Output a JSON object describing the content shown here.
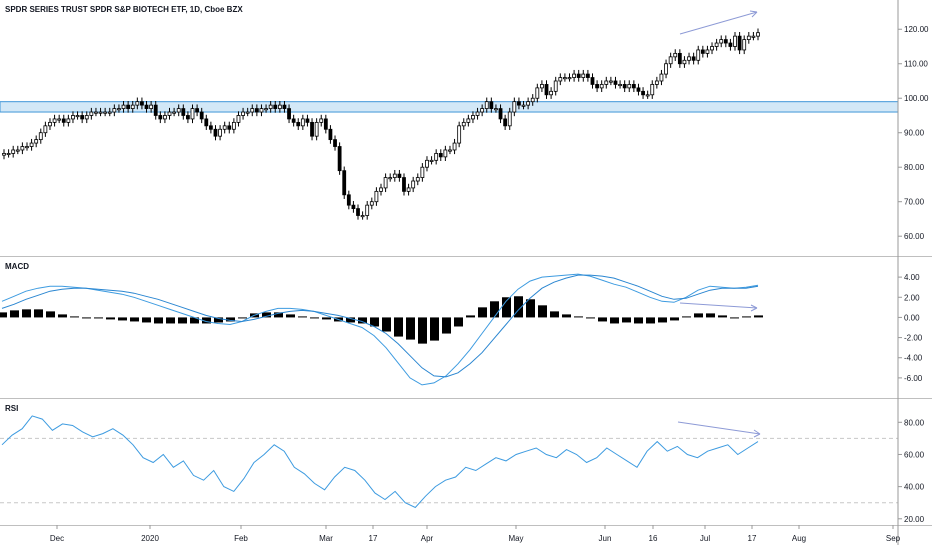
{
  "title": "SPDR SERIES TRUST SPDR S&P BIOTECH ETF, 1D, Cboe BZX",
  "colors": {
    "candle": "#000000",
    "zone_fill": "#cfe6f7",
    "zone_stroke": "#2b8bd4",
    "indicator_line": "#3d9be0",
    "macd_line_2": "#2a86d1",
    "annotation": "#8d9ad6",
    "grid_dashed": "#c7c7c7",
    "separator": "#bfbfbf"
  },
  "panels": {
    "macd_label": "MACD",
    "rsi_label": "RSI"
  },
  "chart_data": [
    {
      "type": "candlestick",
      "panel": "price",
      "y_ticks": [
        "120.00",
        "110.00",
        "100.00",
        "90.00",
        "80.00",
        "70.00",
        "60.00"
      ],
      "ylim": [
        56,
        125
      ],
      "resistance_zone": [
        96,
        99
      ],
      "close": [
        84,
        84,
        85,
        85,
        86,
        86,
        87,
        88,
        90,
        92,
        93,
        94,
        94,
        93,
        94,
        95,
        95,
        94,
        95,
        96,
        96,
        96,
        96,
        96,
        97,
        97,
        98,
        97,
        98,
        99,
        98,
        97,
        98,
        95,
        94,
        95,
        96,
        96,
        97,
        95,
        94,
        97,
        96,
        94,
        92,
        91,
        89,
        91,
        92,
        91,
        93,
        95,
        96,
        96,
        97,
        96,
        97,
        97,
        98,
        97,
        98,
        97,
        94,
        93,
        92,
        94,
        93,
        89,
        93,
        94,
        91,
        88,
        86,
        79,
        72,
        69,
        68,
        66,
        66,
        69,
        70,
        73,
        74,
        77,
        77,
        78,
        77,
        73,
        74,
        76,
        77,
        80,
        82,
        82,
        84,
        83,
        85,
        85,
        87,
        92,
        93,
        94,
        95,
        96,
        97,
        99,
        97,
        97,
        94,
        92,
        96,
        99,
        98,
        98,
        99,
        100,
        103,
        104,
        101,
        102,
        105,
        106,
        106,
        106,
        107,
        106,
        107,
        106,
        104,
        103,
        104,
        105,
        105,
        104,
        104,
        103,
        104,
        103,
        102,
        101,
        101,
        104,
        105,
        107,
        110,
        112,
        113,
        110,
        111,
        112,
        111,
        114,
        113,
        114,
        115,
        116,
        117,
        116,
        115,
        118,
        114,
        117,
        118,
        118,
        119
      ]
    },
    {
      "type": "line",
      "panel": "macd",
      "y_ticks": [
        "4.00",
        "2.00",
        "0.00",
        "-2.00",
        "-4.00",
        "-6.00"
      ],
      "ylim": [
        -7.5,
        5.5
      ],
      "series": [
        {
          "values": [
            1.6,
            2.1,
            2.6,
            2.9,
            3.1,
            3.1,
            3.0,
            2.9,
            2.7,
            2.5,
            2.3,
            2.0,
            1.6,
            1.2,
            0.8,
            0.4,
            0.0,
            -0.4,
            -0.6,
            -0.7,
            -0.4,
            0.2,
            0.6,
            0.9,
            0.9,
            0.8,
            0.6,
            0.2,
            -0.2,
            -0.6,
            -1.0,
            -1.8,
            -3.0,
            -4.5,
            -6.0,
            -6.7,
            -6.5,
            -5.8,
            -4.6,
            -3.2,
            -1.6,
            0.0,
            1.6,
            2.8,
            3.6,
            4.0,
            4.1,
            4.2,
            4.3,
            4.1,
            3.7,
            3.3,
            3.0,
            2.5,
            2.0,
            1.6,
            1.5,
            2.0,
            2.7,
            3.1,
            3.0,
            2.9,
            3.0,
            3.2
          ]
        },
        {
          "values": [
            0.9,
            1.3,
            1.8,
            2.2,
            2.6,
            2.8,
            2.9,
            2.9,
            2.8,
            2.7,
            2.6,
            2.4,
            2.1,
            1.8,
            1.4,
            1.0,
            0.6,
            0.2,
            -0.1,
            -0.3,
            -0.4,
            -0.2,
            0.1,
            0.4,
            0.6,
            0.7,
            0.6,
            0.4,
            0.2,
            -0.1,
            -0.4,
            -0.9,
            -1.6,
            -2.6,
            -3.8,
            -5.0,
            -5.8,
            -5.9,
            -5.5,
            -4.6,
            -3.5,
            -2.1,
            -0.7,
            0.7,
            1.9,
            2.9,
            3.5,
            3.9,
            4.2,
            4.2,
            4.1,
            3.9,
            3.5,
            3.1,
            2.6,
            2.1,
            1.8,
            1.9,
            2.3,
            2.7,
            2.9,
            2.9,
            2.9,
            3.1
          ]
        }
      ],
      "histogram": [
        0.5,
        0.7,
        0.8,
        0.8,
        0.6,
        0.3,
        0.1,
        0.0,
        -0.1,
        -0.2,
        -0.3,
        -0.4,
        -0.5,
        -0.6,
        -0.6,
        -0.6,
        -0.6,
        -0.6,
        -0.5,
        -0.4,
        0.0,
        0.4,
        0.5,
        0.5,
        0.3,
        0.1,
        0.0,
        -0.2,
        -0.4,
        -0.5,
        -0.6,
        -0.9,
        -1.4,
        -1.9,
        -2.2,
        -2.6,
        -2.3,
        -1.6,
        -0.9,
        0.2,
        1.0,
        1.6,
        2.0,
        2.1,
        1.8,
        1.2,
        0.6,
        0.3,
        0.1,
        -0.1,
        -0.4,
        -0.6,
        -0.5,
        -0.6,
        -0.6,
        -0.5,
        -0.3,
        0.1,
        0.4,
        0.4,
        0.2,
        0.0,
        0.1,
        0.2
      ]
    },
    {
      "type": "line",
      "panel": "rsi",
      "y_ticks": [
        "80.00",
        "60.00",
        "40.00",
        "20.00"
      ],
      "ylim": [
        18,
        92
      ],
      "bands": [
        70,
        30
      ],
      "values": [
        66,
        72,
        76,
        84,
        82,
        75,
        79,
        78,
        74,
        71,
        73,
        76,
        72,
        66,
        58,
        55,
        60,
        52,
        56,
        47,
        44,
        50,
        40,
        37,
        45,
        55,
        60,
        66,
        62,
        52,
        48,
        42,
        38,
        46,
        52,
        50,
        44,
        36,
        32,
        37,
        30,
        27,
        34,
        40,
        44,
        46,
        52,
        50,
        54,
        58,
        56,
        60,
        62,
        64,
        60,
        58,
        63,
        60,
        55,
        58,
        64,
        60,
        56,
        52,
        62,
        68,
        62,
        65,
        60,
        58,
        62,
        64,
        66,
        60,
        64,
        68
      ]
    }
  ],
  "x_axis": {
    "labels": [
      "Dec",
      "2020",
      "Feb",
      "Mar",
      "17",
      "Apr",
      "May",
      "Jun",
      "16",
      "Jul",
      "17",
      "Aug",
      "Sep"
    ]
  }
}
